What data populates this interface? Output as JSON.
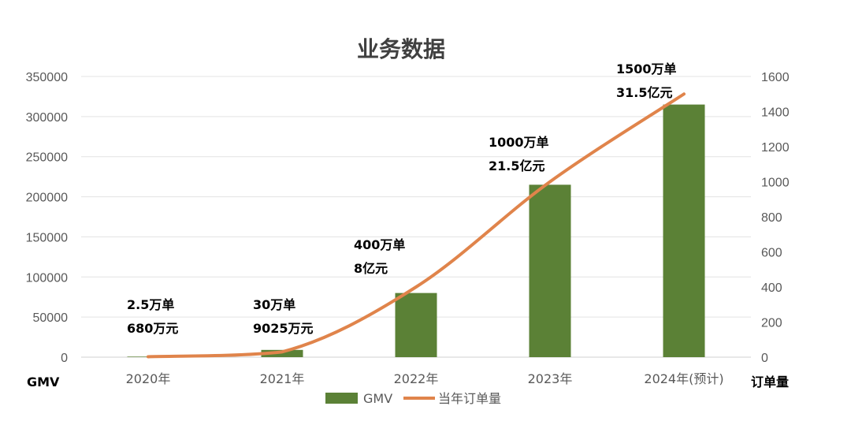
{
  "chart_data": {
    "type": "bar",
    "title": "业务数据",
    "categories": [
      "2020年",
      "2021年",
      "2022年",
      "2023年",
      "2024年(预计)"
    ],
    "series": [
      {
        "name": "GMV",
        "type": "bar",
        "axis": "left",
        "values": [
          680,
          9025,
          80000,
          215000,
          315000
        ],
        "color": "#5B8136"
      },
      {
        "name": "当年订单量",
        "type": "line",
        "axis": "right",
        "values": [
          2.5,
          30,
          400,
          1000,
          1500
        ],
        "color": "#E0844B"
      }
    ],
    "ylabel": "GMV",
    "y2label": "订单量",
    "ylim": [
      0,
      350000
    ],
    "y2lim": [
      0,
      1600
    ],
    "yticks": [
      "0",
      "50000",
      "100000",
      "150000",
      "200000",
      "250000",
      "300000",
      "350000"
    ],
    "y2ticks": [
      "0",
      "200",
      "400",
      "600",
      "800",
      "1000",
      "1200",
      "1400",
      "1600"
    ],
    "annotations": [
      {
        "line1": "2.5万单",
        "line2": "680万元"
      },
      {
        "line1": "30万单",
        "line2": "9025万元"
      },
      {
        "line1": "400万单",
        "line2": "8亿元"
      },
      {
        "line1": "1000万单",
        "line2": "21.5亿元"
      },
      {
        "line1": "1500万单",
        "line2": "31.5亿元"
      }
    ],
    "grid": true,
    "legend": "bottom"
  }
}
